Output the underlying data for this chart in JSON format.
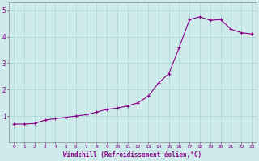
{
  "x": [
    0,
    1,
    2,
    3,
    4,
    5,
    6,
    7,
    8,
    9,
    10,
    11,
    12,
    13,
    14,
    15,
    16,
    17,
    18,
    19,
    20,
    21,
    22,
    23
  ],
  "y": [
    0.7,
    0.7,
    0.72,
    0.85,
    0.9,
    0.95,
    1.0,
    1.05,
    1.15,
    1.25,
    1.3,
    1.38,
    1.5,
    1.75,
    2.25,
    2.6,
    3.6,
    4.65,
    4.75,
    4.62,
    4.65,
    4.28,
    4.15,
    4.1
  ],
  "xlabel": "Windchill (Refroidissement éolien,°C)",
  "ylim": [
    0,
    5.3
  ],
  "xlim": [
    -0.5,
    23.5
  ],
  "yticks": [
    1,
    2,
    3,
    4,
    5
  ],
  "xticks": [
    0,
    1,
    2,
    3,
    4,
    5,
    6,
    7,
    8,
    9,
    10,
    11,
    12,
    13,
    14,
    15,
    16,
    17,
    18,
    19,
    20,
    21,
    22,
    23
  ],
  "line_color": "#880088",
  "bg_color": "#ceeaea",
  "grid_color": "#a8d8d8",
  "tick_label_color": "#880088",
  "xlabel_color": "#880088"
}
